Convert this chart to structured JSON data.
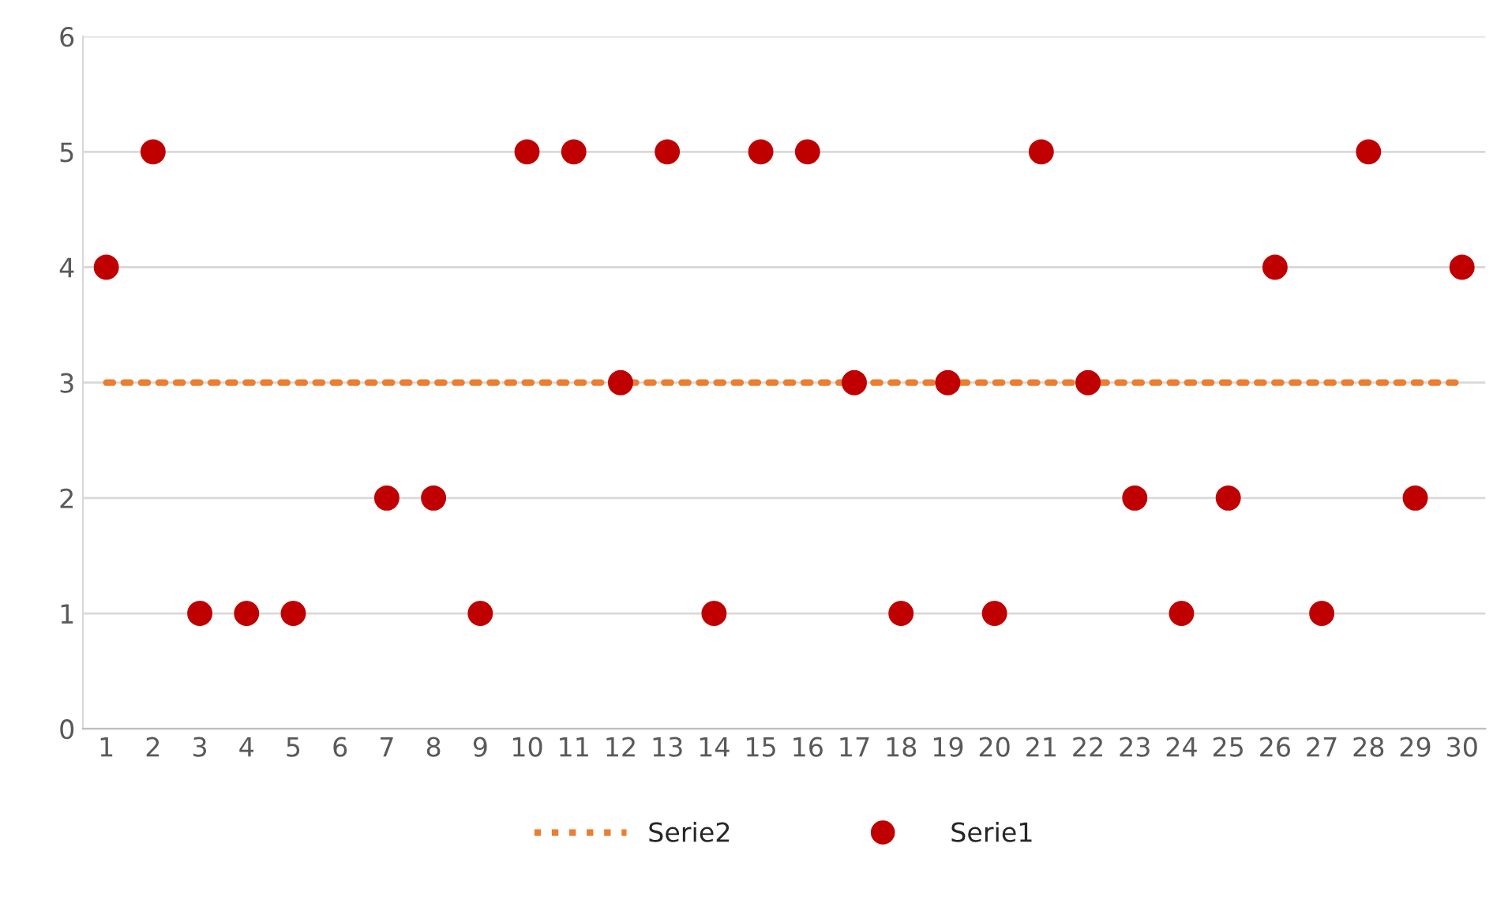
{
  "chart_data": {
    "type": "scatter",
    "categories": [
      "1",
      "2",
      "3",
      "4",
      "5",
      "6",
      "7",
      "8",
      "9",
      "10",
      "11",
      "12",
      "13",
      "14",
      "15",
      "16",
      "17",
      "18",
      "19",
      "20",
      "21",
      "22",
      "23",
      "24",
      "25",
      "26",
      "27",
      "28",
      "29",
      "30"
    ],
    "series": [
      {
        "name": "Serie2",
        "type": "line",
        "color": "#ed7d31",
        "line_style": "dotted",
        "marker": "none",
        "values": [
          3,
          3,
          3,
          3,
          3,
          3,
          3,
          3,
          3,
          3,
          3,
          3,
          3,
          3,
          3,
          3,
          3,
          3,
          3,
          3,
          3,
          3,
          3,
          3,
          3,
          3,
          3,
          3,
          3,
          3
        ]
      },
      {
        "name": "Serie1",
        "color": "#c00000",
        "marker": "circle",
        "values": [
          4,
          5,
          1,
          1,
          1,
          null,
          2,
          2,
          1,
          5,
          5,
          3,
          5,
          1,
          5,
          5,
          3,
          1,
          3,
          1,
          5,
          3,
          2,
          1,
          2,
          4,
          1,
          5,
          2,
          4
        ]
      }
    ],
    "ylim": [
      0,
      6
    ],
    "yticks": [
      0,
      1,
      2,
      3,
      4,
      5,
      6
    ],
    "grid": "y",
    "legend": "bottom"
  }
}
